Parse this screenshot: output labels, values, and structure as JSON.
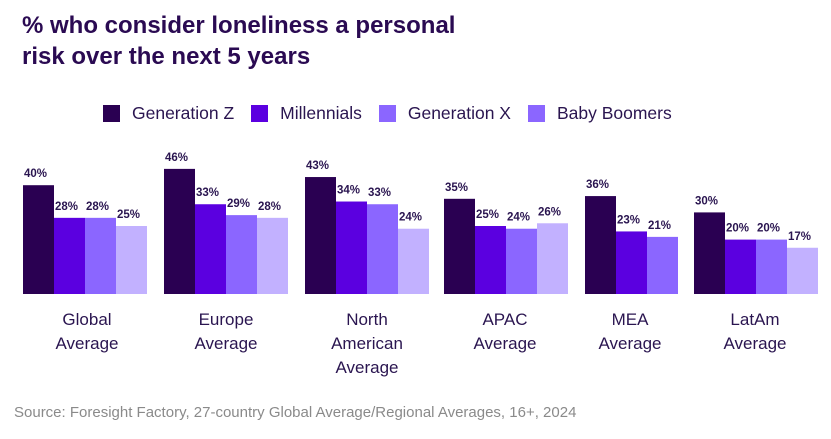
{
  "title_line1": "% who consider loneliness a personal",
  "title_line2": "risk over the next 5 years",
  "source": "Source: Foresight Factory, 27-country Global Average/Regional Averages, 16+, 2024",
  "chart_data": {
    "type": "bar",
    "title": "% who consider loneliness a personal risk over the next 5 years",
    "xlabel": "",
    "ylabel": "",
    "ylim": [
      0,
      50
    ],
    "grid": false,
    "legend_position": "top",
    "categories": [
      [
        "Global",
        "Average"
      ],
      [
        "Europe",
        "Average"
      ],
      [
        "North",
        "American",
        "Average"
      ],
      [
        "APAC",
        "Average"
      ],
      [
        "MEA",
        "Average"
      ],
      [
        "LatAm",
        "Average"
      ]
    ],
    "series": [
      {
        "name": "Generation Z",
        "color": "#2a0052",
        "legend_color": "#2a0052",
        "values": [
          40,
          46,
          43,
          35,
          36,
          30
        ]
      },
      {
        "name": "Millennials",
        "color": "#5b00e0",
        "legend_color": "#5b00e0",
        "values": [
          28,
          33,
          34,
          25,
          23,
          20
        ]
      },
      {
        "name": "Generation X",
        "color": "#8b66ff",
        "legend_color": "#8b66ff",
        "values": [
          28,
          29,
          33,
          24,
          21,
          20
        ]
      },
      {
        "name": "Baby Boomers",
        "color": "#c2b1ff",
        "legend_color": "#8b66ff",
        "values": [
          25,
          28,
          24,
          26,
          null,
          17
        ]
      }
    ],
    "value_suffix": "%"
  }
}
